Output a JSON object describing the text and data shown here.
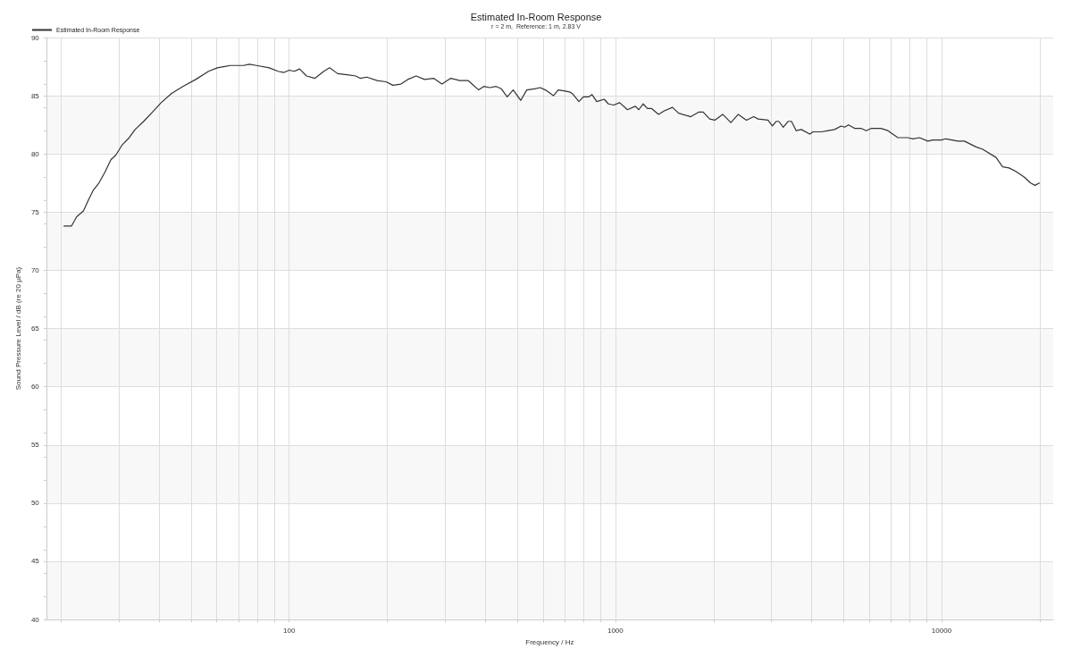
{
  "chart_data": {
    "type": "line",
    "title": "Estimated In-Room Response",
    "subtitle": "r = 2 m,  Reference: 1 m, 2.83 V",
    "xlabel": "Frequency / Hz",
    "ylabel": "Sound Pressure Level / dB (re 20 µPa)",
    "log": "x",
    "grid": true,
    "legend": "top left",
    "marker": "none",
    "line_style": "solid",
    "xlim": [
      18,
      22000
    ],
    "ylim": [
      40,
      90
    ],
    "xticks": [
      {
        "value": 20,
        "label": null
      },
      {
        "value": 30,
        "label": null
      },
      {
        "value": 40,
        "label": null
      },
      {
        "value": 50,
        "label": null
      },
      {
        "value": 60,
        "label": null
      },
      {
        "value": 70,
        "label": null
      },
      {
        "value": 80,
        "label": null
      },
      {
        "value": 90,
        "label": null
      },
      100,
      {
        "value": 200,
        "label": null
      },
      {
        "value": 300,
        "label": null
      },
      {
        "value": 400,
        "label": null
      },
      {
        "value": 500,
        "label": null
      },
      {
        "value": 600,
        "label": null
      },
      {
        "value": 700,
        "label": null
      },
      {
        "value": 800,
        "label": null
      },
      {
        "value": 900,
        "label": null
      },
      1000,
      {
        "value": 2000,
        "label": null
      },
      {
        "value": 3000,
        "label": null
      },
      {
        "value": 4000,
        "label": null
      },
      {
        "value": 5000,
        "label": null
      },
      {
        "value": 6000,
        "label": null
      },
      {
        "value": 7000,
        "label": null
      },
      {
        "value": 8000,
        "label": null
      },
      {
        "value": 9000,
        "label": null
      },
      10000,
      {
        "value": 20000,
        "label": null
      }
    ],
    "yticks": [
      40,
      45,
      50,
      55,
      60,
      65,
      70,
      75,
      80,
      85,
      90
    ],
    "series": [
      {
        "name": "Estimated In-Room Response",
        "color": "#333333",
        "x": [
          20.4,
          21.5,
          22.3,
          23.4,
          24.2,
          25.1,
          26.1,
          27.2,
          28.4,
          29.4,
          30.8,
          32.1,
          33.7,
          35.8,
          38.1,
          40.5,
          43.6,
          47.2,
          51.7,
          56.6,
          60.2,
          66,
          72.4,
          75.5,
          79.3,
          86.9,
          92.4,
          96.4,
          100,
          103.7,
          107.6,
          113,
          120,
          127.7,
          133,
          140.8,
          150.6,
          160,
          165,
          173,
          186,
          198,
          208,
          220,
          231,
          245,
          260,
          277,
          294,
          313,
          333,
          354,
          381,
          395,
          412,
          431,
          447,
          466,
          486,
          513,
          535,
          566,
          588,
          610,
          646,
          668,
          702,
          728,
          743,
          773,
          798,
          828,
          848,
          877,
          924,
          952,
          988,
          1031,
          1089,
          1151,
          1180,
          1217,
          1254,
          1292,
          1357,
          1412,
          1497,
          1562,
          1703,
          1804,
          1859,
          1946,
          2018,
          2133,
          2260,
          2381,
          2523,
          2655,
          2740,
          2938,
          3029,
          3112,
          3170,
          3272,
          3383,
          3467,
          3583,
          3716,
          3944,
          4036,
          4279,
          4496,
          4702,
          4922,
          5045,
          5188,
          5410,
          5665,
          5875,
          6095,
          6518,
          6849,
          7347,
          7883,
          8173,
          8556,
          9075,
          9400,
          9970,
          10310,
          11230,
          11750,
          12760,
          13370,
          14690,
          15390,
          16100,
          16900,
          17950,
          18760,
          19330,
          19950
        ],
        "values": [
          73.8,
          73.8,
          74.6,
          75.1,
          76.0,
          76.9,
          77.5,
          78.4,
          79.5,
          79.9,
          80.8,
          81.3,
          82.1,
          82.8,
          83.6,
          84.4,
          85.2,
          85.8,
          86.4,
          87.1,
          87.4,
          87.6,
          87.6,
          87.7,
          87.6,
          87.4,
          87.1,
          87.0,
          87.2,
          87.1,
          87.3,
          86.7,
          86.5,
          87.1,
          87.4,
          86.9,
          86.8,
          86.7,
          86.5,
          86.6,
          86.3,
          86.2,
          85.9,
          86.0,
          86.4,
          86.7,
          86.4,
          86.5,
          86.0,
          86.5,
          86.3,
          86.3,
          85.5,
          85.8,
          85.7,
          85.8,
          85.6,
          84.9,
          85.5,
          84.6,
          85.5,
          85.6,
          85.7,
          85.5,
          85.0,
          85.5,
          85.4,
          85.3,
          85.1,
          84.5,
          84.9,
          84.9,
          85.1,
          84.5,
          84.7,
          84.3,
          84.2,
          84.4,
          83.8,
          84.1,
          83.8,
          84.3,
          83.9,
          83.9,
          83.4,
          83.7,
          84.0,
          83.5,
          83.2,
          83.6,
          83.6,
          83.0,
          82.9,
          83.4,
          82.7,
          83.4,
          82.9,
          83.2,
          83.0,
          82.9,
          82.4,
          82.8,
          82.8,
          82.3,
          82.8,
          82.8,
          82.0,
          82.1,
          81.7,
          81.9,
          81.9,
          82.0,
          82.1,
          82.4,
          82.3,
          82.5,
          82.2,
          82.2,
          82.0,
          82.2,
          82.2,
          82.0,
          81.4,
          81.4,
          81.3,
          81.4,
          81.1,
          81.2,
          81.2,
          81.3,
          81.1,
          81.1,
          80.6,
          80.4,
          79.7,
          78.9,
          78.8,
          78.5,
          78.0,
          77.5,
          77.3,
          77.5
        ]
      }
    ]
  }
}
